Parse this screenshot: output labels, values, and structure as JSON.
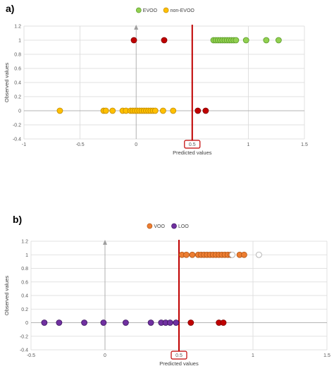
{
  "chart_data": [
    {
      "type": "scatter",
      "panel_label": "a)",
      "title": "",
      "xlabel": "Predicted values",
      "ylabel": "Observed values",
      "xlim": [
        -1,
        1.5
      ],
      "ylim": [
        -0.4,
        1.2
      ],
      "x_ticks": [
        "-1",
        "-0.5",
        "0",
        "0.5",
        "1",
        "1.5"
      ],
      "y_ticks": [
        "-0.4",
        "-0.2",
        "0",
        "0.2",
        "0.4",
        "0.6",
        "0.8",
        "1",
        "1.2"
      ],
      "threshold": 0.5,
      "threshold_label": "0.5",
      "threshold_color": "#c00000",
      "grid": true,
      "legend_position": "top",
      "series": [
        {
          "name": "EVOO",
          "color": "#92d050",
          "edge": "#5a9a2a",
          "points": [
            [
              0.69,
              1
            ],
            [
              0.71,
              1
            ],
            [
              0.73,
              1
            ],
            [
              0.75,
              1
            ],
            [
              0.77,
              1
            ],
            [
              0.79,
              1
            ],
            [
              0.81,
              1
            ],
            [
              0.83,
              1
            ],
            [
              0.85,
              1
            ],
            [
              0.87,
              1
            ],
            [
              0.89,
              1
            ],
            [
              0.98,
              1
            ],
            [
              1.16,
              1
            ],
            [
              1.27,
              1
            ]
          ]
        },
        {
          "name": "non-EVOO",
          "color": "#ffc000",
          "edge": "#c08a00",
          "points": [
            [
              -0.68,
              0
            ],
            [
              -0.29,
              0
            ],
            [
              -0.27,
              0
            ],
            [
              -0.21,
              0
            ],
            [
              -0.12,
              0
            ],
            [
              -0.09,
              0
            ],
            [
              -0.05,
              0
            ],
            [
              -0.03,
              0
            ],
            [
              -0.01,
              0
            ],
            [
              0.01,
              0
            ],
            [
              0.03,
              0
            ],
            [
              0.05,
              0
            ],
            [
              0.07,
              0
            ],
            [
              0.09,
              0
            ],
            [
              0.11,
              0
            ],
            [
              0.13,
              0
            ],
            [
              0.15,
              0
            ],
            [
              0.17,
              0
            ],
            [
              0.24,
              0
            ],
            [
              0.33,
              0
            ]
          ]
        },
        {
          "name": "",
          "color": "#c00000",
          "edge": "#800000",
          "points": [
            [
              -0.02,
              1
            ],
            [
              0.25,
              1
            ],
            [
              0.55,
              0
            ],
            [
              0.62,
              0
            ]
          ]
        }
      ]
    },
    {
      "type": "scatter",
      "panel_label": "b)",
      "title": "",
      "xlabel": "Predicted values",
      "ylabel": "Observed values",
      "xlim": [
        -0.5,
        1.5
      ],
      "ylim": [
        -0.4,
        1.2
      ],
      "x_ticks": [
        "-0.5",
        "0",
        "0.5",
        "1",
        "1.5"
      ],
      "y_ticks": [
        "-0.4",
        "-0.2",
        "0",
        "0.2",
        "0.4",
        "0.6",
        "0.8",
        "1",
        "1.2"
      ],
      "threshold": 0.5,
      "threshold_label": "0.5",
      "threshold_color": "#c00000",
      "grid": true,
      "legend_position": "top",
      "series": [
        {
          "name": "VOO",
          "color": "#ed7d31",
          "edge": "#b05516",
          "points": [
            [
              0.52,
              1
            ],
            [
              0.55,
              1
            ],
            [
              0.59,
              1
            ],
            [
              0.63,
              1
            ],
            [
              0.65,
              1
            ],
            [
              0.67,
              1
            ],
            [
              0.69,
              1
            ],
            [
              0.71,
              1
            ],
            [
              0.73,
              1
            ],
            [
              0.75,
              1
            ],
            [
              0.77,
              1
            ],
            [
              0.79,
              1
            ],
            [
              0.81,
              1
            ],
            [
              0.83,
              1
            ],
            [
              0.85,
              1
            ],
            [
              0.91,
              1
            ],
            [
              0.94,
              1
            ]
          ]
        },
        {
          "name": "LOO",
          "color": "#7030a0",
          "edge": "#3e1660",
          "points": [
            [
              -0.41,
              0
            ],
            [
              -0.31,
              0
            ],
            [
              -0.14,
              0
            ],
            [
              -0.01,
              0
            ],
            [
              0.14,
              0
            ],
            [
              0.31,
              0
            ],
            [
              0.38,
              0
            ],
            [
              0.41,
              0
            ],
            [
              0.44,
              0
            ],
            [
              0.48,
              0
            ]
          ]
        },
        {
          "name": "",
          "color": "#c00000",
          "edge": "#800000",
          "points": [
            [
              0.58,
              0
            ],
            [
              0.77,
              0
            ],
            [
              0.8,
              0
            ]
          ]
        },
        {
          "name": "",
          "color": "#ffffff",
          "edge": "#a6a6a6",
          "points": [
            [
              0.86,
              1
            ],
            [
              1.04,
              1
            ]
          ]
        }
      ]
    }
  ]
}
